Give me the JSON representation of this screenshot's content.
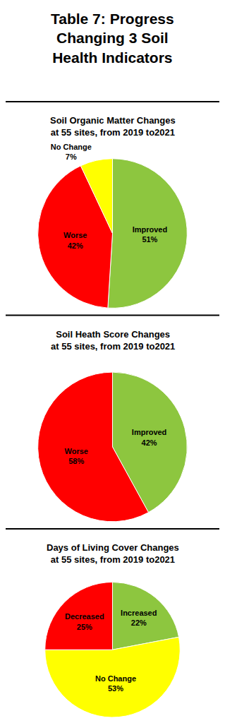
{
  "title": "Table 7: Progress\nChanging 3 Soil\nHealth Indicators",
  "chart_data": [
    {
      "type": "pie",
      "title": "Soil Organic Matter Changes\nat 55 sites, from 2019 to2021",
      "categories": [
        "Improved",
        "Worse",
        "No Change"
      ],
      "values": [
        51,
        42,
        7
      ],
      "value_labels": [
        "51%",
        "42%",
        "7%"
      ],
      "colors": [
        "#8dc63f",
        "#ff0000",
        "#ffff00"
      ],
      "data_labels": true
    },
    {
      "type": "pie",
      "title": "Soil Heath Score Changes\nat 55 sites, from 2019 to2021",
      "categories": [
        "Improved",
        "Worse"
      ],
      "values": [
        42,
        58
      ],
      "value_labels": [
        "42%",
        "58%"
      ],
      "colors": [
        "#8dc63f",
        "#ff0000"
      ],
      "data_labels": true
    },
    {
      "type": "pie",
      "title": "Days of Living Cover Changes\nat 55 sites, from 2019 to2021",
      "categories": [
        "Increased",
        "No Change",
        "Decreased"
      ],
      "values": [
        22,
        53,
        25
      ],
      "value_labels": [
        "22%",
        "53%",
        "25%"
      ],
      "colors": [
        "#8dc63f",
        "#ffff00",
        "#ff0000"
      ],
      "data_labels": true
    }
  ]
}
